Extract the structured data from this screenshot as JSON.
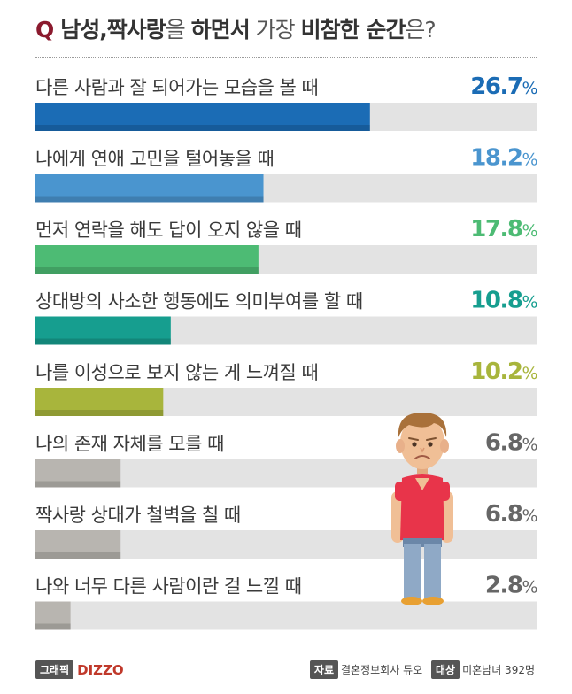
{
  "title": {
    "q_mark": "Q",
    "part1": "남성,짝사랑",
    "part2": "을 ",
    "part3": "하면서",
    "part4": " 가장 ",
    "part5": "비참한 순간",
    "part6": "은?"
  },
  "chart_data": {
    "type": "bar",
    "orientation": "horizontal",
    "title": "남성,짝사랑을 하면서 가장 비참한 순간은?",
    "xlim": [
      0,
      40
    ],
    "unit": "%",
    "categories": [
      "다른 사람과 잘 되어가는 모습을 볼 때",
      "나에게 연애 고민을 털어놓을 때",
      "먼저 연락을 해도 답이 오지 않을 때",
      "상대방의 사소한 행동에도 의미부여를 할 때",
      "나를 이성으로 보지 않는 게 느껴질 때",
      "나의 존재 자체를 모를 때",
      "짝사랑 상대가 철벽을 칠 때",
      "나와 너무 다른 사람이란 걸 느낄 때"
    ],
    "values": [
      26.7,
      18.2,
      17.8,
      10.8,
      10.2,
      6.8,
      6.8,
      2.8
    ],
    "value_labels": [
      "26.7",
      "18.2",
      "17.8",
      "10.8",
      "10.2",
      "6.8",
      "6.8",
      "2.8"
    ],
    "colors": [
      "#1b6cb5",
      "#4a95cf",
      "#4dbb74",
      "#169e8f",
      "#a8b53c",
      "#b8b5b0",
      "#b8b5b0",
      "#b8b5b0"
    ],
    "value_colors": [
      "#1b6cb5",
      "#4a95cf",
      "#4dbb74",
      "#169e8f",
      "#a8b53c",
      "#666666",
      "#666666",
      "#666666"
    ],
    "track_color": "#e3e3e3"
  },
  "footer": {
    "graphic_tag": "그래픽",
    "brand": "DIZZO",
    "source_tag": "자료",
    "source_text": "결혼정보회사 듀오",
    "target_tag": "대상",
    "target_text": "미혼남녀 392명"
  }
}
